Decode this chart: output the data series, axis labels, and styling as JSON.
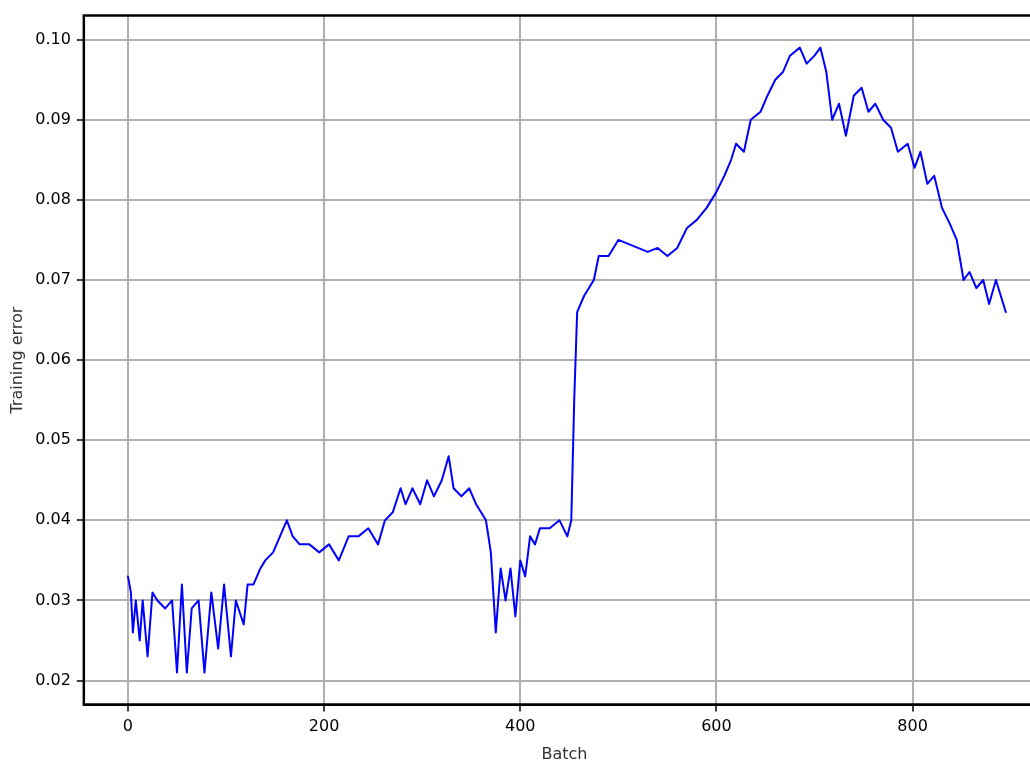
{
  "chart_data": {
    "type": "line",
    "xlabel": "Batch",
    "ylabel": "Training error",
    "xlim": [
      -45,
      935
    ],
    "ylim": [
      0.017,
      0.103
    ],
    "xticks": [
      0,
      200,
      400,
      600,
      800
    ],
    "yticks": [
      {
        "value": 0.02,
        "label": "0.02"
      },
      {
        "value": 0.03,
        "label": "0.03"
      },
      {
        "value": 0.04,
        "label": "0.04"
      },
      {
        "value": 0.05,
        "label": "0.05"
      },
      {
        "value": 0.06,
        "label": "0.06"
      },
      {
        "value": 0.07,
        "label": "0.07"
      },
      {
        "value": 0.08,
        "label": "0.08"
      },
      {
        "value": 0.09,
        "label": "0.09"
      },
      {
        "value": 0.1,
        "label": "0.10"
      }
    ],
    "grid": true,
    "marker": "none",
    "line_style": "solid",
    "series": [
      {
        "color": "#0000ff",
        "x": [
          0,
          3,
          5,
          8,
          12,
          15,
          20,
          25,
          30,
          38,
          45,
          50,
          55,
          60,
          65,
          72,
          78,
          85,
          92,
          98,
          105,
          110,
          118,
          122,
          128,
          135,
          140,
          148,
          155,
          162,
          168,
          175,
          185,
          195,
          205,
          215,
          225,
          235,
          245,
          255,
          262,
          270,
          278,
          283,
          290,
          298,
          305,
          312,
          320,
          327,
          332,
          340,
          348,
          355,
          360,
          365,
          370,
          375,
          380,
          385,
          390,
          395,
          400,
          405,
          410,
          415,
          420,
          430,
          440,
          448,
          452,
          455,
          458,
          465,
          475,
          480,
          490,
          500,
          510,
          520,
          530,
          540,
          550,
          560,
          570,
          580,
          590,
          600,
          608,
          615,
          620,
          628,
          635,
          645,
          652,
          660,
          668,
          675,
          685,
          692,
          700,
          706,
          712,
          718,
          725,
          732,
          740,
          748,
          755,
          762,
          770,
          778,
          785,
          795,
          802,
          808,
          815,
          822,
          830,
          838,
          845,
          852,
          858,
          865,
          872,
          878,
          885,
          890,
          895
        ],
        "values": [
          0.033,
          0.031,
          0.026,
          0.03,
          0.025,
          0.03,
          0.023,
          0.031,
          0.03,
          0.029,
          0.03,
          0.021,
          0.032,
          0.021,
          0.029,
          0.03,
          0.021,
          0.031,
          0.024,
          0.032,
          0.023,
          0.03,
          0.027,
          0.032,
          0.032,
          0.034,
          0.035,
          0.036,
          0.038,
          0.04,
          0.038,
          0.037,
          0.037,
          0.036,
          0.037,
          0.035,
          0.038,
          0.038,
          0.039,
          0.037,
          0.04,
          0.041,
          0.044,
          0.042,
          0.044,
          0.042,
          0.045,
          0.043,
          0.045,
          0.048,
          0.044,
          0.043,
          0.044,
          0.042,
          0.041,
          0.04,
          0.036,
          0.026,
          0.034,
          0.03,
          0.034,
          0.028,
          0.035,
          0.033,
          0.038,
          0.037,
          0.039,
          0.039,
          0.04,
          0.038,
          0.04,
          0.055,
          0.066,
          0.068,
          0.07,
          0.073,
          0.073,
          0.075,
          0.0745,
          0.074,
          0.0735,
          0.074,
          0.073,
          0.074,
          0.0765,
          0.0775,
          0.079,
          0.081,
          0.083,
          0.085,
          0.087,
          0.086,
          0.09,
          0.091,
          0.093,
          0.095,
          0.096,
          0.098,
          0.099,
          0.097,
          0.098,
          0.099,
          0.096,
          0.09,
          0.092,
          0.088,
          0.093,
          0.094,
          0.091,
          0.092,
          0.09,
          0.089,
          0.086,
          0.087,
          0.084,
          0.086,
          0.082,
          0.083,
          0.079,
          0.077,
          0.075,
          0.07,
          0.071,
          0.069,
          0.07,
          0.067,
          0.07,
          0.068,
          0.066
        ]
      }
    ]
  }
}
